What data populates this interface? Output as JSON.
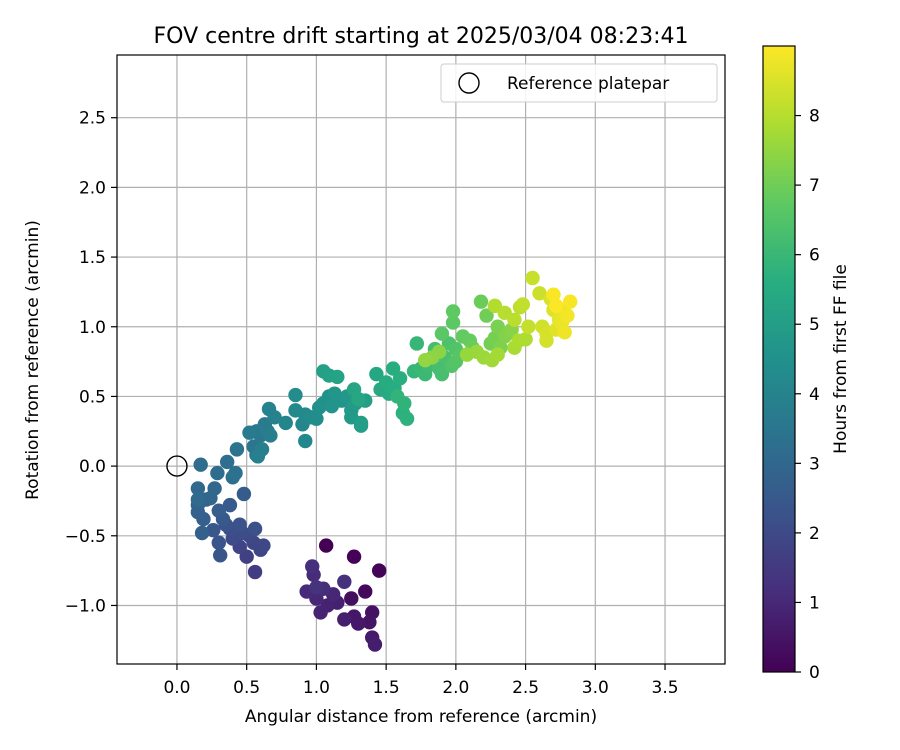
{
  "chart_data": {
    "type": "scatter",
    "title": "FOV centre drift starting at 2025/03/04 08:23:41",
    "xlabel": "Angular distance from reference (arcmin)",
    "ylabel": "Rotation from reference (arcmin)",
    "xlim": [
      -0.43,
      3.93
    ],
    "ylim": [
      -1.42,
      2.95
    ],
    "xticks": [
      0.0,
      0.5,
      1.0,
      1.5,
      2.0,
      2.5,
      3.0,
      3.5
    ],
    "xtick_labels": [
      "0.0",
      "0.5",
      "1.0",
      "1.5",
      "2.0",
      "2.5",
      "3.0",
      "3.5"
    ],
    "yticks": [
      -1.0,
      -0.5,
      0.0,
      0.5,
      1.0,
      1.5,
      2.0,
      2.5
    ],
    "ytick_labels": [
      "−1.0",
      "−0.5",
      "0.0",
      "0.5",
      "1.0",
      "1.5",
      "2.0",
      "2.5"
    ],
    "grid": true,
    "legend": {
      "position": "top-right",
      "entries": [
        "Reference platepar"
      ]
    },
    "reference_point": {
      "x": 0.0,
      "y": 0.0,
      "label": "Reference platepar"
    },
    "colorbar": {
      "label": "Hours from first FF file",
      "range": [
        0,
        9
      ],
      "ticks": [
        0,
        1,
        2,
        3,
        4,
        5,
        6,
        7,
        8
      ],
      "tick_labels": [
        "0",
        "1",
        "2",
        "3",
        "4",
        "5",
        "6",
        "7",
        "8"
      ],
      "colormap": "viridis"
    },
    "points": [
      {
        "x": 1.07,
        "y": -0.57,
        "t": 0.0
      },
      {
        "x": 1.27,
        "y": -0.65,
        "t": 0.05
      },
      {
        "x": 1.45,
        "y": -0.75,
        "t": 0.1
      },
      {
        "x": 1.35,
        "y": -0.9,
        "t": 0.2
      },
      {
        "x": 1.25,
        "y": -0.95,
        "t": 0.3
      },
      {
        "x": 1.4,
        "y": -1.05,
        "t": 0.4
      },
      {
        "x": 1.38,
        "y": -1.12,
        "t": 0.5
      },
      {
        "x": 1.27,
        "y": -1.08,
        "t": 0.55
      },
      {
        "x": 1.3,
        "y": -1.13,
        "t": 0.6
      },
      {
        "x": 1.4,
        "y": -1.23,
        "t": 0.65
      },
      {
        "x": 1.42,
        "y": -1.28,
        "t": 0.7
      },
      {
        "x": 1.2,
        "y": -1.1,
        "t": 0.75
      },
      {
        "x": 1.15,
        "y": -0.98,
        "t": 0.8
      },
      {
        "x": 1.08,
        "y": -1.0,
        "t": 0.85
      },
      {
        "x": 1.03,
        "y": -1.05,
        "t": 0.9
      },
      {
        "x": 1.12,
        "y": -0.92,
        "t": 0.95
      },
      {
        "x": 1.0,
        "y": -0.95,
        "t": 1.0
      },
      {
        "x": 0.93,
        "y": -0.9,
        "t": 1.05
      },
      {
        "x": 0.98,
        "y": -0.78,
        "t": 1.1
      },
      {
        "x": 1.05,
        "y": -0.88,
        "t": 1.15
      },
      {
        "x": 0.97,
        "y": -0.72,
        "t": 1.2
      },
      {
        "x": 1.2,
        "y": -0.83,
        "t": 1.25
      },
      {
        "x": 1.0,
        "y": -0.87,
        "t": 1.3
      },
      {
        "x": 0.56,
        "y": -0.76,
        "t": 1.6
      },
      {
        "x": 0.5,
        "y": -0.65,
        "t": 1.7
      },
      {
        "x": 0.45,
        "y": -0.58,
        "t": 1.8
      },
      {
        "x": 0.6,
        "y": -0.6,
        "t": 1.85
      },
      {
        "x": 0.55,
        "y": -0.55,
        "t": 1.9
      },
      {
        "x": 0.62,
        "y": -0.57,
        "t": 1.95
      },
      {
        "x": 0.52,
        "y": -0.5,
        "t": 2.0
      },
      {
        "x": 0.4,
        "y": -0.52,
        "t": 2.05
      },
      {
        "x": 0.47,
        "y": -0.48,
        "t": 2.1
      },
      {
        "x": 0.38,
        "y": -0.45,
        "t": 2.15
      },
      {
        "x": 0.56,
        "y": -0.45,
        "t": 2.2
      },
      {
        "x": 0.45,
        "y": -0.42,
        "t": 2.25
      },
      {
        "x": 0.35,
        "y": -0.42,
        "t": 2.3
      },
      {
        "x": 0.3,
        "y": -0.55,
        "t": 2.35
      },
      {
        "x": 0.31,
        "y": -0.64,
        "t": 2.4
      },
      {
        "x": 0.26,
        "y": -0.46,
        "t": 2.45
      },
      {
        "x": 0.33,
        "y": -0.38,
        "t": 2.5
      },
      {
        "x": 0.38,
        "y": -0.28,
        "t": 2.55
      },
      {
        "x": 0.48,
        "y": -0.2,
        "t": 2.6
      },
      {
        "x": 0.3,
        "y": -0.32,
        "t": 2.65
      },
      {
        "x": 0.19,
        "y": -0.38,
        "t": 2.7
      },
      {
        "x": 0.18,
        "y": -0.48,
        "t": 2.75
      },
      {
        "x": 0.15,
        "y": -0.33,
        "t": 2.8
      },
      {
        "x": 0.15,
        "y": -0.28,
        "t": 2.85
      },
      {
        "x": 0.21,
        "y": -0.24,
        "t": 2.9
      },
      {
        "x": 0.24,
        "y": -0.23,
        "t": 2.95
      },
      {
        "x": 0.27,
        "y": -0.16,
        "t": 3.0
      },
      {
        "x": 0.15,
        "y": -0.16,
        "t": 3.05
      },
      {
        "x": 0.15,
        "y": -0.24,
        "t": 3.1
      },
      {
        "x": 0.17,
        "y": 0.01,
        "t": 3.15
      },
      {
        "x": 0.29,
        "y": -0.05,
        "t": 3.2
      },
      {
        "x": 0.36,
        "y": 0.03,
        "t": 3.25
      },
      {
        "x": 0.4,
        "y": -0.08,
        "t": 3.3
      },
      {
        "x": 0.42,
        "y": -0.05,
        "t": 3.35
      },
      {
        "x": 0.43,
        "y": 0.12,
        "t": 3.4
      },
      {
        "x": 0.57,
        "y": 0.08,
        "t": 3.45
      },
      {
        "x": 0.55,
        "y": 0.14,
        "t": 3.5
      },
      {
        "x": 0.6,
        "y": 0.22,
        "t": 3.55
      },
      {
        "x": 0.57,
        "y": 0.25,
        "t": 3.6
      },
      {
        "x": 0.52,
        "y": 0.24,
        "t": 3.65
      },
      {
        "x": 0.63,
        "y": 0.3,
        "t": 3.7
      },
      {
        "x": 0.65,
        "y": 0.25,
        "t": 3.75
      },
      {
        "x": 0.67,
        "y": 0.22,
        "t": 3.8
      },
      {
        "x": 0.61,
        "y": 0.12,
        "t": 3.85
      },
      {
        "x": 0.58,
        "y": 0.07,
        "t": 3.9
      },
      {
        "x": 0.7,
        "y": 0.35,
        "t": 3.95
      },
      {
        "x": 0.66,
        "y": 0.41,
        "t": 4.0
      },
      {
        "x": 0.78,
        "y": 0.31,
        "t": 4.05
      },
      {
        "x": 0.9,
        "y": 0.3,
        "t": 4.1
      },
      {
        "x": 0.92,
        "y": 0.18,
        "t": 4.15
      },
      {
        "x": 0.92,
        "y": 0.37,
        "t": 4.2
      },
      {
        "x": 0.85,
        "y": 0.4,
        "t": 4.25
      },
      {
        "x": 0.96,
        "y": 0.35,
        "t": 4.3
      },
      {
        "x": 0.85,
        "y": 0.51,
        "t": 4.35
      },
      {
        "x": 1.0,
        "y": 0.34,
        "t": 4.4
      },
      {
        "x": 1.02,
        "y": 0.42,
        "t": 4.45
      },
      {
        "x": 1.05,
        "y": 0.45,
        "t": 4.5
      },
      {
        "x": 1.09,
        "y": 0.5,
        "t": 4.55
      },
      {
        "x": 1.11,
        "y": 0.43,
        "t": 4.6
      },
      {
        "x": 1.18,
        "y": 0.47,
        "t": 4.65
      },
      {
        "x": 1.13,
        "y": 0.52,
        "t": 4.7
      },
      {
        "x": 1.22,
        "y": 0.5,
        "t": 4.75
      },
      {
        "x": 1.25,
        "y": 0.4,
        "t": 4.8
      },
      {
        "x": 1.25,
        "y": 0.35,
        "t": 4.85
      },
      {
        "x": 1.28,
        "y": 0.45,
        "t": 4.9
      },
      {
        "x": 1.32,
        "y": 0.31,
        "t": 4.95
      },
      {
        "x": 1.32,
        "y": 0.29,
        "t": 5.0
      },
      {
        "x": 1.35,
        "y": 0.47,
        "t": 5.05
      },
      {
        "x": 1.05,
        "y": 0.68,
        "t": 5.1
      },
      {
        "x": 1.09,
        "y": 0.65,
        "t": 5.15
      },
      {
        "x": 1.15,
        "y": 0.64,
        "t": 5.2
      },
      {
        "x": 1.27,
        "y": 0.55,
        "t": 5.25
      },
      {
        "x": 1.3,
        "y": 0.48,
        "t": 5.3
      },
      {
        "x": 1.43,
        "y": 0.66,
        "t": 5.35
      },
      {
        "x": 1.46,
        "y": 0.55,
        "t": 5.4
      },
      {
        "x": 1.52,
        "y": 0.52,
        "t": 5.45
      },
      {
        "x": 1.5,
        "y": 0.6,
        "t": 5.5
      },
      {
        "x": 1.56,
        "y": 0.56,
        "t": 5.55
      },
      {
        "x": 1.55,
        "y": 0.7,
        "t": 5.6
      },
      {
        "x": 1.6,
        "y": 0.63,
        "t": 5.65
      },
      {
        "x": 1.62,
        "y": 0.38,
        "t": 5.7
      },
      {
        "x": 1.65,
        "y": 0.34,
        "t": 5.75
      },
      {
        "x": 1.63,
        "y": 0.45,
        "t": 5.8
      },
      {
        "x": 1.58,
        "y": 0.5,
        "t": 5.85
      },
      {
        "x": 1.7,
        "y": 0.68,
        "t": 5.9
      },
      {
        "x": 1.72,
        "y": 0.88,
        "t": 5.95
      },
      {
        "x": 1.75,
        "y": 0.7,
        "t": 6.0
      },
      {
        "x": 1.78,
        "y": 0.66,
        "t": 6.05
      },
      {
        "x": 1.8,
        "y": 0.72,
        "t": 6.1
      },
      {
        "x": 1.82,
        "y": 0.75,
        "t": 6.15
      },
      {
        "x": 1.85,
        "y": 0.84,
        "t": 6.2
      },
      {
        "x": 1.88,
        "y": 0.7,
        "t": 6.25
      },
      {
        "x": 1.9,
        "y": 0.66,
        "t": 6.3
      },
      {
        "x": 1.92,
        "y": 0.78,
        "t": 6.35
      },
      {
        "x": 1.95,
        "y": 0.88,
        "t": 6.4
      },
      {
        "x": 1.97,
        "y": 0.72,
        "t": 6.45
      },
      {
        "x": 2.0,
        "y": 0.84,
        "t": 6.5
      },
      {
        "x": 2.0,
        "y": 0.75,
        "t": 6.55
      },
      {
        "x": 2.03,
        "y": 0.8,
        "t": 6.6
      },
      {
        "x": 1.9,
        "y": 0.95,
        "t": 6.65
      },
      {
        "x": 1.98,
        "y": 1.03,
        "t": 6.7
      },
      {
        "x": 1.98,
        "y": 1.11,
        "t": 6.75
      },
      {
        "x": 2.05,
        "y": 0.93,
        "t": 6.8
      },
      {
        "x": 2.1,
        "y": 0.9,
        "t": 6.85
      },
      {
        "x": 2.12,
        "y": 0.85,
        "t": 6.9
      },
      {
        "x": 2.18,
        "y": 1.18,
        "t": 6.95
      },
      {
        "x": 2.22,
        "y": 1.08,
        "t": 7.0
      },
      {
        "x": 2.25,
        "y": 0.88,
        "t": 7.05
      },
      {
        "x": 2.28,
        "y": 0.92,
        "t": 7.1
      },
      {
        "x": 2.3,
        "y": 1.0,
        "t": 7.15
      },
      {
        "x": 2.32,
        "y": 0.85,
        "t": 7.2
      },
      {
        "x": 2.35,
        "y": 0.93,
        "t": 7.25
      },
      {
        "x": 2.38,
        "y": 0.96,
        "t": 7.3
      },
      {
        "x": 2.4,
        "y": 0.98,
        "t": 7.35
      },
      {
        "x": 1.88,
        "y": 0.82,
        "t": 7.4
      },
      {
        "x": 1.83,
        "y": 0.78,
        "t": 7.45
      },
      {
        "x": 1.78,
        "y": 0.76,
        "t": 7.5
      },
      {
        "x": 2.08,
        "y": 0.8,
        "t": 7.55
      },
      {
        "x": 2.15,
        "y": 0.82,
        "t": 7.6
      },
      {
        "x": 2.2,
        "y": 0.78,
        "t": 7.65
      },
      {
        "x": 2.26,
        "y": 0.76,
        "t": 7.7
      },
      {
        "x": 2.3,
        "y": 0.8,
        "t": 7.75
      },
      {
        "x": 2.42,
        "y": 0.85,
        "t": 7.8
      },
      {
        "x": 2.45,
        "y": 0.9,
        "t": 7.85
      },
      {
        "x": 2.5,
        "y": 0.91,
        "t": 7.9
      },
      {
        "x": 2.28,
        "y": 1.15,
        "t": 7.95
      },
      {
        "x": 2.35,
        "y": 1.1,
        "t": 8.0
      },
      {
        "x": 2.42,
        "y": 1.05,
        "t": 8.05
      },
      {
        "x": 2.46,
        "y": 1.14,
        "t": 8.1
      },
      {
        "x": 2.48,
        "y": 1.16,
        "t": 8.15
      },
      {
        "x": 2.52,
        "y": 1.0,
        "t": 8.2
      },
      {
        "x": 2.55,
        "y": 1.35,
        "t": 8.25
      },
      {
        "x": 2.6,
        "y": 1.24,
        "t": 8.3
      },
      {
        "x": 2.62,
        "y": 1.0,
        "t": 8.35
      },
      {
        "x": 2.65,
        "y": 0.9,
        "t": 8.4
      },
      {
        "x": 2.65,
        "y": 0.95,
        "t": 8.45
      },
      {
        "x": 2.68,
        "y": 1.2,
        "t": 8.5
      },
      {
        "x": 2.7,
        "y": 1.12,
        "t": 8.55
      },
      {
        "x": 2.72,
        "y": 0.98,
        "t": 8.6
      },
      {
        "x": 2.74,
        "y": 1.05,
        "t": 8.65
      },
      {
        "x": 2.75,
        "y": 1.12,
        "t": 8.7
      },
      {
        "x": 2.76,
        "y": 1.03,
        "t": 8.75
      },
      {
        "x": 2.78,
        "y": 0.96,
        "t": 8.8
      },
      {
        "x": 2.8,
        "y": 1.08,
        "t": 8.85
      },
      {
        "x": 2.82,
        "y": 1.18,
        "t": 8.9
      },
      {
        "x": 2.7,
        "y": 1.23,
        "t": 8.95
      },
      {
        "x": 2.72,
        "y": 1.15,
        "t": 8.97
      }
    ]
  }
}
